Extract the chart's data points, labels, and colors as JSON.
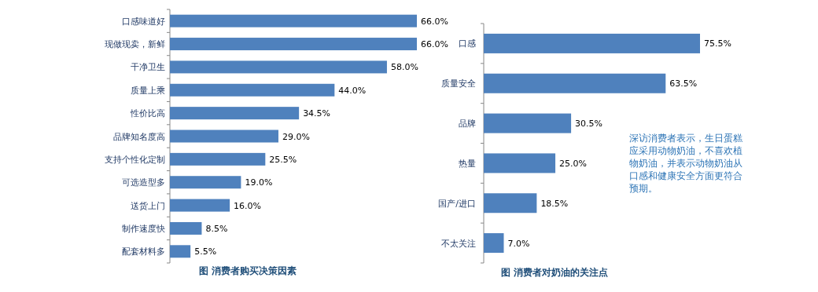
{
  "chart_data": [
    {
      "type": "bar",
      "orientation": "horizontal",
      "title": "图 消费者购买决策因素",
      "categories": [
        "口感味道好",
        "现做现卖，新鲜",
        "干净卫生",
        "质量上乘",
        "性价比高",
        "品牌知名度高",
        "支持个性化定制",
        "可选造型多",
        "送货上门",
        "制作速度快",
        "配套材料多"
      ],
      "values": [
        66.0,
        66.0,
        58.0,
        44.0,
        34.5,
        29.0,
        25.5,
        19.0,
        16.0,
        8.5,
        5.5
      ],
      "value_labels": [
        "66.0%",
        "66.0%",
        "58.0%",
        "44.0%",
        "34.5%",
        "29.0%",
        "25.5%",
        "19.0%",
        "16.0%",
        "8.5%",
        "5.5%"
      ],
      "color": "#4f81bd",
      "tick_labels": "y"
    },
    {
      "type": "bar",
      "orientation": "horizontal",
      "title": "图 消费者对奶油的关注点",
      "categories": [
        "口感",
        "质量安全",
        "品牌",
        "热量",
        "国产/进口",
        "不太关注"
      ],
      "values": [
        75.5,
        63.5,
        30.5,
        25.0,
        18.5,
        7.0
      ],
      "value_labels": [
        "75.5%",
        "63.5%",
        "30.5%",
        "25.0%",
        "18.5%",
        "7.0%"
      ],
      "color": "#4f81bd",
      "tick_labels": "y",
      "annotations": [
        "深访消费者表示，生日蛋糕应采用动物奶油，不喜欢植物奶油，并表示动物奶油从口感和健康安全方面更符合预期。"
      ]
    }
  ]
}
